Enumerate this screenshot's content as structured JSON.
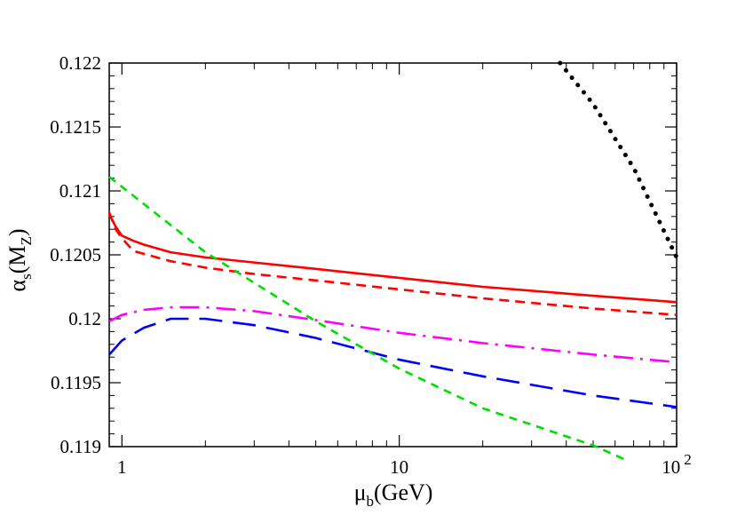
{
  "chart_data": {
    "type": "line",
    "xscale": "log",
    "xlim": [
      0.9,
      100
    ],
    "ylim": [
      0.119,
      0.122
    ],
    "grid": false,
    "x_ticks": [
      {
        "value": 1,
        "label": "1"
      },
      {
        "value": 10,
        "label": "10"
      },
      {
        "value": 100,
        "label": "10",
        "sup": "2"
      }
    ],
    "y_ticks": [
      {
        "value": 0.119,
        "label": "0.119"
      },
      {
        "value": 0.1195,
        "label": "0.1195"
      },
      {
        "value": 0.12,
        "label": "0.12"
      },
      {
        "value": 0.1205,
        "label": "0.1205"
      },
      {
        "value": 0.121,
        "label": "0.121"
      },
      {
        "value": 0.1215,
        "label": "0.1215"
      },
      {
        "value": 0.122,
        "label": "0.122"
      }
    ],
    "xlabel": {
      "main": "μ",
      "sub": "b",
      "rest": "(GeV)"
    },
    "ylabel": {
      "main": "α",
      "sub": "s",
      "rest1": "(M",
      "sub2": "Z",
      "rest2": ")"
    },
    "series": [
      {
        "color": "#ff0000",
        "style": "solid",
        "points": [
          [
            0.9,
            0.12082
          ],
          [
            0.95,
            0.12072
          ],
          [
            1.0,
            0.12065
          ],
          [
            1.1,
            0.12061
          ],
          [
            1.2,
            0.12058
          ],
          [
            1.5,
            0.12052
          ],
          [
            2.0,
            0.12048
          ],
          [
            3.0,
            0.12044
          ],
          [
            5.0,
            0.12039
          ],
          [
            10.0,
            0.12032
          ],
          [
            20.0,
            0.12025
          ],
          [
            50.0,
            0.12018
          ],
          [
            100.0,
            0.12013
          ]
        ]
      },
      {
        "color": "#ff0000",
        "style": "dashed",
        "points": [
          [
            0.9,
            0.12083
          ],
          [
            0.95,
            0.1207
          ],
          [
            1.0,
            0.12063
          ],
          [
            1.1,
            0.12053
          ],
          [
            1.5,
            0.12045
          ],
          [
            2.0,
            0.1204
          ],
          [
            3.0,
            0.12035
          ],
          [
            5.0,
            0.1203
          ],
          [
            10.0,
            0.12023
          ],
          [
            20.0,
            0.12016
          ],
          [
            50.0,
            0.12008
          ],
          [
            100.0,
            0.12003
          ]
        ]
      },
      {
        "color": "#ff00ff",
        "style": "dashdot",
        "points": [
          [
            0.9,
            0.11998
          ],
          [
            1.0,
            0.12003
          ],
          [
            1.2,
            0.12007
          ],
          [
            1.5,
            0.12009
          ],
          [
            2.0,
            0.12009
          ],
          [
            3.0,
            0.12006
          ],
          [
            5.0,
            0.11999
          ],
          [
            10.0,
            0.11989
          ],
          [
            20.0,
            0.11981
          ],
          [
            50.0,
            0.11972
          ],
          [
            100.0,
            0.11966
          ]
        ]
      },
      {
        "color": "#0000ff",
        "style": "longdash",
        "points": [
          [
            0.9,
            0.11972
          ],
          [
            1.0,
            0.11983
          ],
          [
            1.2,
            0.11993
          ],
          [
            1.5,
            0.12
          ],
          [
            2.0,
            0.12
          ],
          [
            3.0,
            0.11995
          ],
          [
            5.0,
            0.11985
          ],
          [
            10.0,
            0.11968
          ],
          [
            20.0,
            0.11955
          ],
          [
            50.0,
            0.1194
          ],
          [
            100.0,
            0.11931
          ]
        ]
      },
      {
        "color": "#00dd00",
        "style": "shortdash",
        "points": [
          [
            0.9,
            0.12111
          ],
          [
            2.0,
            0.12052
          ],
          [
            5.0,
            0.11998
          ],
          [
            10.0,
            0.11961
          ],
          [
            20.0,
            0.1193
          ],
          [
            50.0,
            0.11901
          ],
          [
            65.0,
            0.1189
          ]
        ]
      },
      {
        "color": "#000000",
        "style": "dotted",
        "points": [
          [
            38.0,
            0.122
          ],
          [
            50.0,
            0.12168
          ],
          [
            70.0,
            0.12118
          ],
          [
            100.0,
            0.12048
          ]
        ]
      }
    ]
  }
}
